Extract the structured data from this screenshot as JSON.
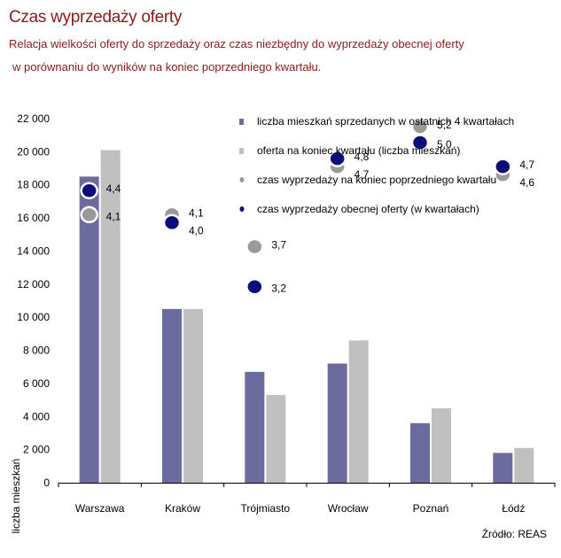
{
  "header": {
    "title": "Czas wyprzedaży oferty",
    "subtitle_line1": "Relacja wielkości oferty do sprzedaży oraz czas niezbędny do wyprzedaży obecnej oferty",
    "subtitle_line2": "w porównaniu do wyników na koniec poprzedniego kwartału."
  },
  "source": "Źródło: REAS",
  "colors": {
    "sold": "#6b6b9e",
    "offer": "#c0c0c0",
    "prev_time": "#9a9a9a",
    "curr_time": "#0d0d7a",
    "title": "#8b1a1a"
  },
  "chart_data": {
    "type": "bar",
    "ylabel": "liczba mieszkań",
    "ylim": [
      0,
      22000
    ],
    "yticks": [
      "0",
      "2 000",
      "4 000",
      "6 000",
      "8 000",
      "10 000",
      "12 000",
      "14 000",
      "16 000",
      "18 000",
      "20 000",
      "22 000"
    ],
    "categories": [
      "Warszawa",
      "Kraków",
      "Trójmiasto",
      "Wrocław",
      "Poznań",
      "Łódź"
    ],
    "series": [
      {
        "name": "liczba mieszkań sprzedanych w ostatnich 4 kwartałach",
        "kind": "bar",
        "values": [
          18500,
          10500,
          6700,
          7200,
          3600,
          1800
        ]
      },
      {
        "name": "oferta na koniec kwartału (liczba mieszkań)",
        "kind": "bar",
        "values": [
          20100,
          10500,
          5300,
          8600,
          4500,
          2100
        ]
      },
      {
        "name": "czas wyprzedaży na koniec poprzedniego kwartału",
        "kind": "point",
        "values": [
          4.1,
          4.1,
          3.7,
          4.7,
          5.2,
          4.6
        ],
        "labels": [
          "4,1",
          "4,1",
          "3,7",
          "4,7",
          "5,2",
          "4,6"
        ]
      },
      {
        "name": "czas wyprzedaży obecnej oferty (w kwartałach)",
        "kind": "point",
        "values": [
          4.4,
          4.0,
          3.2,
          4.8,
          5.0,
          4.7
        ],
        "labels": [
          "4,4",
          "4,0",
          "3,2",
          "4,8",
          "5,0",
          "4,7"
        ]
      }
    ],
    "legend": "top-right",
    "grid": false
  }
}
